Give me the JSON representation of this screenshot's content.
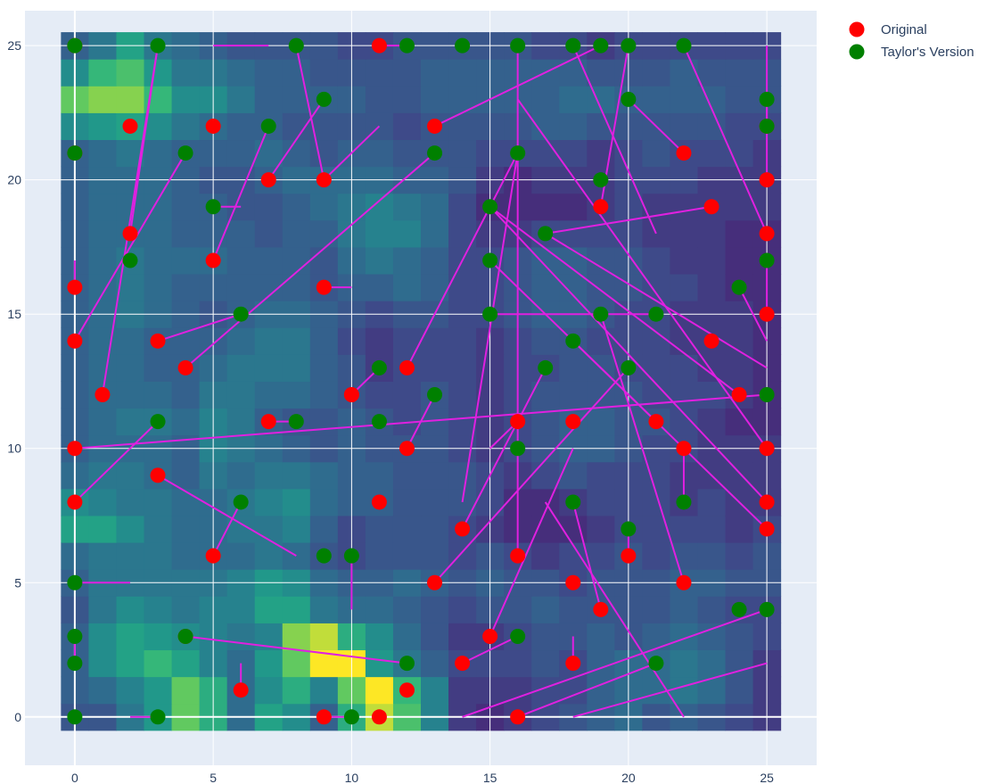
{
  "chart_data": {
    "type": "scatter",
    "title": "",
    "xlabel": "",
    "ylabel": "",
    "xlim": [
      -1.8,
      26.8
    ],
    "ylim": [
      -1.8,
      26.3
    ],
    "x_ticks": [
      "0",
      "5",
      "10",
      "15",
      "20",
      "25"
    ],
    "y_ticks": [
      "0",
      "5",
      "10",
      "15",
      "20",
      "25"
    ],
    "grid": true,
    "legend_position": "top-right",
    "background": "#e5ecf6",
    "heatmap": {
      "type": "heatmap",
      "colorscale": "viridis",
      "x_range": [
        0,
        25
      ],
      "y_range": [
        0,
        25
      ],
      "values": [
        [
          0.3,
          0.3,
          0.45,
          0.6,
          0.85,
          0.7,
          0.4,
          0.65,
          0.55,
          0.35,
          0.7,
          0.95,
          0.8,
          0.5,
          0.2,
          0.15,
          0.2,
          0.25,
          0.3,
          0.35,
          0.4,
          0.3,
          0.35,
          0.3,
          0.25,
          0.2
        ],
        [
          0.35,
          0.4,
          0.5,
          0.6,
          0.85,
          0.7,
          0.4,
          0.55,
          0.7,
          0.5,
          0.85,
          1.0,
          0.75,
          0.5,
          0.2,
          0.2,
          0.2,
          0.25,
          0.25,
          0.35,
          0.4,
          0.4,
          0.45,
          0.4,
          0.3,
          0.2
        ],
        [
          0.35,
          0.55,
          0.65,
          0.75,
          0.65,
          0.5,
          0.4,
          0.6,
          0.85,
          1.0,
          1.0,
          0.6,
          0.45,
          0.35,
          0.25,
          0.25,
          0.25,
          0.3,
          0.25,
          0.35,
          0.4,
          0.4,
          0.45,
          0.4,
          0.3,
          0.2
        ],
        [
          0.35,
          0.55,
          0.65,
          0.6,
          0.55,
          0.5,
          0.45,
          0.5,
          0.9,
          0.95,
          0.7,
          0.55,
          0.4,
          0.3,
          0.2,
          0.2,
          0.25,
          0.3,
          0.3,
          0.35,
          0.3,
          0.35,
          0.4,
          0.35,
          0.3,
          0.25
        ],
        [
          0.3,
          0.45,
          0.55,
          0.5,
          0.45,
          0.5,
          0.5,
          0.65,
          0.65,
          0.45,
          0.4,
          0.4,
          0.35,
          0.3,
          0.25,
          0.3,
          0.3,
          0.35,
          0.3,
          0.3,
          0.3,
          0.3,
          0.35,
          0.3,
          0.25,
          0.25
        ],
        [
          0.35,
          0.45,
          0.45,
          0.45,
          0.45,
          0.45,
          0.5,
          0.6,
          0.55,
          0.4,
          0.35,
          0.35,
          0.4,
          0.35,
          0.3,
          0.35,
          0.3,
          0.3,
          0.25,
          0.3,
          0.3,
          0.3,
          0.35,
          0.35,
          0.3,
          0.3
        ],
        [
          0.4,
          0.45,
          0.45,
          0.45,
          0.4,
          0.4,
          0.4,
          0.45,
          0.4,
          0.3,
          0.25,
          0.3,
          0.3,
          0.3,
          0.25,
          0.3,
          0.25,
          0.2,
          0.25,
          0.25,
          0.3,
          0.25,
          0.3,
          0.3,
          0.25,
          0.3
        ],
        [
          0.65,
          0.65,
          0.55,
          0.45,
          0.4,
          0.4,
          0.45,
          0.45,
          0.5,
          0.35,
          0.25,
          0.3,
          0.3,
          0.3,
          0.25,
          0.2,
          0.15,
          0.15,
          0.15,
          0.2,
          0.25,
          0.25,
          0.25,
          0.25,
          0.2,
          0.25
        ],
        [
          0.55,
          0.5,
          0.45,
          0.45,
          0.4,
          0.4,
          0.45,
          0.5,
          0.55,
          0.4,
          0.35,
          0.35,
          0.3,
          0.3,
          0.3,
          0.25,
          0.15,
          0.15,
          0.2,
          0.25,
          0.25,
          0.25,
          0.2,
          0.25,
          0.2,
          0.2
        ],
        [
          0.4,
          0.45,
          0.45,
          0.4,
          0.35,
          0.45,
          0.4,
          0.45,
          0.45,
          0.4,
          0.35,
          0.35,
          0.3,
          0.3,
          0.3,
          0.25,
          0.2,
          0.25,
          0.3,
          0.25,
          0.25,
          0.25,
          0.2,
          0.2,
          0.2,
          0.2
        ],
        [
          0.35,
          0.4,
          0.4,
          0.4,
          0.35,
          0.5,
          0.45,
          0.4,
          0.35,
          0.3,
          0.35,
          0.3,
          0.3,
          0.3,
          0.25,
          0.2,
          0.25,
          0.3,
          0.35,
          0.35,
          0.3,
          0.25,
          0.25,
          0.2,
          0.2,
          0.2
        ],
        [
          0.35,
          0.4,
          0.45,
          0.45,
          0.4,
          0.5,
          0.45,
          0.35,
          0.3,
          0.3,
          0.35,
          0.3,
          0.25,
          0.3,
          0.25,
          0.2,
          0.25,
          0.3,
          0.35,
          0.35,
          0.3,
          0.3,
          0.25,
          0.2,
          0.15,
          0.15
        ],
        [
          0.35,
          0.4,
          0.4,
          0.4,
          0.35,
          0.45,
          0.45,
          0.4,
          0.4,
          0.35,
          0.3,
          0.25,
          0.25,
          0.3,
          0.25,
          0.2,
          0.25,
          0.3,
          0.3,
          0.3,
          0.3,
          0.25,
          0.25,
          0.25,
          0.2,
          0.15
        ],
        [
          0.35,
          0.4,
          0.4,
          0.35,
          0.35,
          0.4,
          0.45,
          0.45,
          0.45,
          0.35,
          0.3,
          0.2,
          0.25,
          0.25,
          0.25,
          0.2,
          0.25,
          0.25,
          0.3,
          0.3,
          0.25,
          0.25,
          0.25,
          0.2,
          0.2,
          0.15
        ],
        [
          0.35,
          0.4,
          0.4,
          0.35,
          0.35,
          0.35,
          0.4,
          0.45,
          0.45,
          0.35,
          0.25,
          0.2,
          0.25,
          0.25,
          0.25,
          0.2,
          0.25,
          0.3,
          0.3,
          0.25,
          0.25,
          0.25,
          0.2,
          0.2,
          0.2,
          0.15
        ],
        [
          0.35,
          0.4,
          0.45,
          0.4,
          0.35,
          0.3,
          0.35,
          0.4,
          0.4,
          0.35,
          0.3,
          0.25,
          0.3,
          0.3,
          0.25,
          0.25,
          0.3,
          0.35,
          0.35,
          0.3,
          0.25,
          0.25,
          0.2,
          0.2,
          0.2,
          0.15
        ],
        [
          0.35,
          0.4,
          0.45,
          0.4,
          0.35,
          0.35,
          0.35,
          0.35,
          0.35,
          0.3,
          0.35,
          0.35,
          0.4,
          0.35,
          0.25,
          0.25,
          0.3,
          0.35,
          0.35,
          0.3,
          0.3,
          0.25,
          0.25,
          0.2,
          0.15,
          0.15
        ],
        [
          0.35,
          0.4,
          0.45,
          0.4,
          0.4,
          0.4,
          0.35,
          0.35,
          0.35,
          0.3,
          0.4,
          0.45,
          0.4,
          0.35,
          0.25,
          0.25,
          0.3,
          0.35,
          0.35,
          0.3,
          0.3,
          0.25,
          0.2,
          0.2,
          0.15,
          0.15
        ],
        [
          0.35,
          0.4,
          0.4,
          0.4,
          0.35,
          0.35,
          0.35,
          0.3,
          0.35,
          0.35,
          0.45,
          0.5,
          0.5,
          0.4,
          0.25,
          0.2,
          0.2,
          0.25,
          0.25,
          0.25,
          0.25,
          0.2,
          0.2,
          0.2,
          0.15,
          0.15
        ],
        [
          0.35,
          0.4,
          0.4,
          0.4,
          0.35,
          0.35,
          0.3,
          0.3,
          0.35,
          0.4,
          0.45,
          0.5,
          0.45,
          0.4,
          0.25,
          0.15,
          0.15,
          0.15,
          0.15,
          0.2,
          0.25,
          0.2,
          0.2,
          0.2,
          0.2,
          0.2
        ],
        [
          0.35,
          0.4,
          0.4,
          0.4,
          0.35,
          0.3,
          0.3,
          0.35,
          0.4,
          0.4,
          0.4,
          0.4,
          0.35,
          0.35,
          0.3,
          0.2,
          0.15,
          0.2,
          0.2,
          0.2,
          0.25,
          0.25,
          0.25,
          0.2,
          0.2,
          0.2
        ],
        [
          0.35,
          0.4,
          0.45,
          0.4,
          0.35,
          0.35,
          0.35,
          0.4,
          0.35,
          0.3,
          0.35,
          0.35,
          0.3,
          0.3,
          0.3,
          0.25,
          0.25,
          0.25,
          0.25,
          0.2,
          0.25,
          0.3,
          0.25,
          0.25,
          0.25,
          0.2
        ],
        [
          0.55,
          0.6,
          0.65,
          0.55,
          0.45,
          0.4,
          0.35,
          0.35,
          0.3,
          0.3,
          0.3,
          0.3,
          0.25,
          0.3,
          0.3,
          0.3,
          0.3,
          0.35,
          0.35,
          0.3,
          0.3,
          0.3,
          0.3,
          0.3,
          0.25,
          0.25
        ],
        [
          0.85,
          0.9,
          0.9,
          0.75,
          0.55,
          0.55,
          0.45,
          0.35,
          0.35,
          0.35,
          0.35,
          0.3,
          0.3,
          0.35,
          0.35,
          0.35,
          0.35,
          0.35,
          0.4,
          0.4,
          0.35,
          0.35,
          0.35,
          0.35,
          0.3,
          0.3
        ],
        [
          0.55,
          0.75,
          0.8,
          0.6,
          0.45,
          0.45,
          0.4,
          0.35,
          0.35,
          0.3,
          0.3,
          0.3,
          0.3,
          0.35,
          0.35,
          0.35,
          0.35,
          0.35,
          0.35,
          0.3,
          0.3,
          0.3,
          0.35,
          0.3,
          0.3,
          0.3
        ],
        [
          0.35,
          0.45,
          0.65,
          0.45,
          0.4,
          0.35,
          0.3,
          0.3,
          0.3,
          0.3,
          0.25,
          0.25,
          0.3,
          0.3,
          0.3,
          0.3,
          0.3,
          0.25,
          0.25,
          0.2,
          0.25,
          0.25,
          0.25,
          0.25,
          0.25,
          0.25
        ]
      ]
    },
    "series": [
      {
        "name": "Original",
        "color": "#ff0000",
        "x": [
          0,
          2,
          5,
          11,
          13,
          7,
          9,
          22,
          0,
          19,
          23,
          2,
          24,
          25,
          5,
          25,
          0,
          12,
          10,
          3,
          4,
          1,
          25,
          0,
          25,
          16,
          12,
          18,
          21,
          9,
          11,
          18,
          14,
          0,
          10,
          22,
          23,
          16,
          25,
          25,
          5,
          9,
          0,
          13,
          7,
          19,
          15,
          11,
          20,
          14,
          4,
          3,
          22,
          18,
          16,
          12,
          25,
          6
        ],
        "y": [
          25,
          22,
          22,
          25,
          22,
          20,
          20,
          21,
          21,
          19,
          19,
          18,
          12,
          22,
          17,
          18,
          16,
          13,
          12,
          14,
          13,
          12,
          15,
          14,
          20,
          11,
          10,
          11,
          11,
          16,
          8,
          5,
          2,
          8,
          12,
          10,
          14,
          0,
          10,
          8,
          6,
          0,
          10,
          5,
          11,
          4,
          3,
          0,
          6,
          7,
          3,
          9,
          5,
          2,
          6,
          1,
          7,
          1
        ]
      },
      {
        "name": "Taylor's Version",
        "color": "#008000",
        "x": [
          0,
          3,
          7,
          8,
          9,
          12,
          14,
          16,
          18,
          19,
          20,
          22,
          25,
          0,
          4,
          13,
          16,
          20,
          25,
          2,
          5,
          17,
          19,
          0,
          15,
          21,
          24,
          25,
          6,
          9,
          11,
          15,
          15,
          19,
          13,
          18,
          3,
          8,
          11,
          16,
          17,
          18,
          20,
          22,
          0,
          10,
          6,
          24,
          25,
          0,
          4,
          12,
          16,
          20,
          0,
          3,
          10,
          21,
          25
        ],
        "y": [
          25,
          25,
          22,
          25,
          23,
          25,
          25,
          25,
          25,
          25,
          25,
          25,
          23,
          21,
          21,
          21,
          21,
          23,
          22,
          17,
          19,
          18,
          20,
          5,
          19,
          15,
          16,
          17,
          15,
          6,
          13,
          17,
          15,
          15,
          12,
          14,
          11,
          11,
          11,
          10,
          13,
          8,
          13,
          8,
          3,
          6,
          8,
          4,
          4,
          2,
          3,
          2,
          3,
          7,
          0,
          0,
          0,
          2,
          12
        ]
      },
      {
        "name": "",
        "color": "#e020e0"
      }
    ]
  }
}
